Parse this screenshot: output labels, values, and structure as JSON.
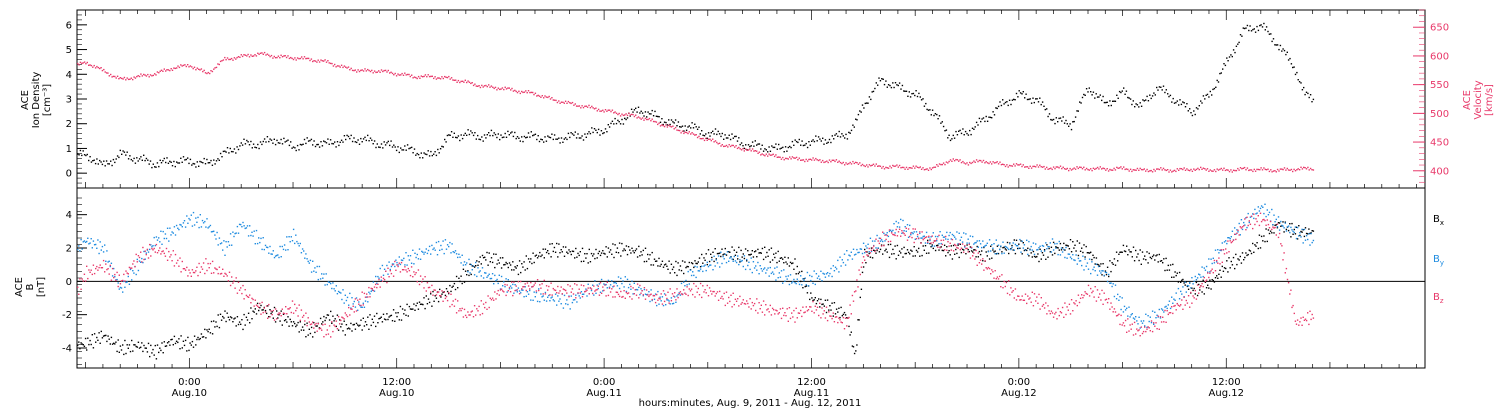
{
  "colors": {
    "black": "#000000",
    "pink": "#e8396a",
    "blue": "#1f8ce0"
  },
  "footer": {
    "xlabel": "hours:minutes, Aug.  9, 2011 - Aug. 12, 2011"
  },
  "chart_data": [
    {
      "type": "scatter",
      "panel": "top",
      "left_axis": {
        "label_lines": [
          "ACE",
          "Ion Density",
          "[cm⁻³]"
        ],
        "ylim": [
          -0.6,
          6.6
        ],
        "ticks": [
          "0",
          "1",
          "2",
          "3",
          "4",
          "5",
          "6"
        ]
      },
      "right_axis": {
        "label_lines": [
          "ACE",
          "Velocity",
          "[km/s]"
        ],
        "ylim": [
          370,
          680
        ],
        "ticks": [
          "400",
          "450",
          "500",
          "550",
          "600",
          "650"
        ]
      },
      "xlim_hours": [
        -6.5,
        71.5
      ],
      "grid": false,
      "series": [
        {
          "color_key": "black",
          "axis": "left",
          "x": [
            -6.5,
            -5.5,
            -5,
            -4,
            -3,
            -2,
            -1,
            0,
            1,
            2,
            3,
            4,
            5,
            6,
            7,
            8,
            9,
            10,
            11,
            12,
            13,
            14,
            15,
            16,
            17,
            18,
            19,
            20,
            21,
            22,
            23,
            24,
            25,
            26,
            27,
            28,
            29,
            30,
            31,
            32,
            33,
            34,
            35,
            36,
            37,
            38,
            38.5,
            39,
            40,
            41,
            42,
            43,
            44,
            45,
            46,
            47,
            48,
            49,
            50,
            51,
            52,
            53,
            54,
            55,
            56,
            57,
            58,
            59,
            60,
            61,
            62,
            63,
            64,
            64.5,
            65
          ],
          "y": [
            0.8,
            0.6,
            0.3,
            0.8,
            0.6,
            0.4,
            0.5,
            0.5,
            0.4,
            0.8,
            1.2,
            1.2,
            1.4,
            1.1,
            1.3,
            1.2,
            1.4,
            1.4,
            1.2,
            1.1,
            0.9,
            0.7,
            1.5,
            1.6,
            1.5,
            1.6,
            1.5,
            1.5,
            1.4,
            1.5,
            1.6,
            1.8,
            2.2,
            2.6,
            2.3,
            2.0,
            1.9,
            1.6,
            1.6,
            1.2,
            1.1,
            1.0,
            1.2,
            1.3,
            1.4,
            1.6,
            2.0,
            2.8,
            3.8,
            3.5,
            3.2,
            2.5,
            1.5,
            1.7,
            2.2,
            2.8,
            3.2,
            3.0,
            2.2,
            2.0,
            3.5,
            2.8,
            3.3,
            2.7,
            3.5,
            3.0,
            2.5,
            3.2,
            4.5,
            5.8,
            6.0,
            5.2,
            4.2,
            3.2,
            3.0
          ]
        },
        {
          "color_key": "pink",
          "axis": "right",
          "x": [
            -6.5,
            -6,
            -5,
            -4,
            -3,
            -2,
            -1,
            0,
            1,
            2,
            3,
            4,
            5,
            6,
            7,
            8,
            9,
            10,
            11,
            12,
            13,
            14,
            15,
            16,
            17,
            18,
            19,
            20,
            21,
            22,
            23,
            24,
            25,
            26,
            27,
            28,
            29,
            30,
            31,
            32,
            33,
            34,
            35,
            36,
            37,
            38,
            39,
            40,
            41,
            42,
            43,
            44,
            45,
            46,
            47,
            48,
            49,
            50,
            51,
            52,
            53,
            54,
            55,
            56,
            57,
            58,
            59,
            60,
            61,
            62,
            63,
            64,
            65
          ],
          "y": [
            585,
            590,
            575,
            560,
            565,
            570,
            580,
            585,
            570,
            595,
            600,
            605,
            600,
            598,
            595,
            590,
            580,
            575,
            575,
            570,
            565,
            565,
            562,
            555,
            548,
            545,
            540,
            535,
            525,
            518,
            512,
            506,
            500,
            495,
            485,
            475,
            465,
            455,
            445,
            440,
            432,
            425,
            422,
            420,
            418,
            415,
            412,
            408,
            408,
            406,
            405,
            420,
            415,
            418,
            412,
            410,
            408,
            406,
            405,
            405,
            404,
            405,
            402,
            403,
            402,
            404,
            403,
            402,
            404,
            403,
            402,
            404,
            405
          ]
        }
      ]
    },
    {
      "type": "scatter",
      "panel": "bottom",
      "left_axis": {
        "label_lines": [
          "ACE",
          "B",
          "[nT]"
        ],
        "ylim": [
          -5.2,
          5.6
        ],
        "ticks": [
          "-4",
          "-2",
          "0",
          "2",
          "4"
        ]
      },
      "xlim_hours": [
        -6.5,
        71.5
      ],
      "zero_line": 0,
      "grid": false,
      "legend": {
        "placement": "right",
        "entries": [
          {
            "text": "B",
            "sub": "x",
            "color_key": "black"
          },
          {
            "text": "B",
            "sub": "y",
            "color_key": "blue"
          },
          {
            "text": "B",
            "sub": "z",
            "color_key": "pink"
          }
        ]
      },
      "series": [
        {
          "color_key": "black",
          "x": [
            -6.5,
            -6,
            -5,
            -4,
            -3,
            -2,
            -1,
            0,
            1,
            2,
            3,
            4,
            5,
            6,
            7,
            8,
            9,
            10,
            11,
            12,
            13,
            14,
            15,
            16,
            17,
            18,
            19,
            20,
            21,
            22,
            23,
            24,
            25,
            26,
            27,
            28,
            29,
            30,
            31,
            32,
            33,
            34,
            35,
            36,
            37,
            38,
            38.5,
            39,
            40,
            41,
            42,
            43,
            44,
            45,
            46,
            47,
            48,
            49,
            50,
            51,
            52,
            53,
            54,
            55,
            56,
            57,
            58,
            59,
            60,
            61,
            62,
            63,
            64,
            65
          ],
          "y": [
            -3.8,
            -3.7,
            -3.2,
            -4.0,
            -3.8,
            -4.2,
            -3.5,
            -3.8,
            -3.0,
            -2.0,
            -2.5,
            -1.5,
            -2.0,
            -2.5,
            -3.0,
            -2.0,
            -2.8,
            -2.5,
            -2.2,
            -2.0,
            -1.5,
            -1.0,
            -0.5,
            0.5,
            1.5,
            1.2,
            0.8,
            1.5,
            2.0,
            1.8,
            1.5,
            1.8,
            2.0,
            1.8,
            1.2,
            0.8,
            1.0,
            1.5,
            1.8,
            1.6,
            1.8,
            1.5,
            1.0,
            -1.0,
            -1.5,
            -2.0,
            -4.5,
            1.5,
            2.0,
            1.8,
            1.8,
            2.2,
            1.8,
            2.0,
            1.6,
            2.0,
            2.2,
            1.5,
            2.0,
            2.2,
            1.8,
            0.5,
            2.0,
            1.5,
            1.5,
            0.5,
            -0.5,
            -0.2,
            1.0,
            1.5,
            2.5,
            3.5,
            3.0,
            3.0
          ]
        },
        {
          "color_key": "blue",
          "x": [
            -6.5,
            -6,
            -5,
            -4,
            -3,
            -2,
            -1,
            0,
            1,
            2,
            3,
            4,
            5,
            6,
            7,
            8,
            9,
            10,
            11,
            12,
            13,
            14,
            15,
            16,
            17,
            18,
            19,
            20,
            21,
            22,
            23,
            24,
            25,
            26,
            27,
            28,
            29,
            30,
            31,
            32,
            33,
            34,
            35,
            36,
            37,
            38,
            39,
            40,
            41,
            42,
            43,
            44,
            45,
            46,
            47,
            48,
            49,
            50,
            51,
            52,
            53,
            54,
            55,
            56,
            57,
            58,
            59,
            60,
            61,
            62,
            63,
            64,
            65
          ],
          "y": [
            2.0,
            2.5,
            2.0,
            -0.5,
            1.0,
            2.5,
            3.0,
            3.8,
            3.5,
            2.0,
            3.5,
            2.5,
            1.5,
            2.8,
            1.0,
            0.0,
            -1.0,
            -1.5,
            0.5,
            1.2,
            1.5,
            2.0,
            2.2,
            1.0,
            0.5,
            0.0,
            -0.5,
            -0.8,
            -1.0,
            -1.2,
            -0.5,
            -0.2,
            0.0,
            -0.5,
            -1.0,
            -1.2,
            0.5,
            1.0,
            1.5,
            1.2,
            0.8,
            0.5,
            0.0,
            0.2,
            0.5,
            1.5,
            2.0,
            2.5,
            3.5,
            2.8,
            2.5,
            2.8,
            2.5,
            2.2,
            2.0,
            2.2,
            2.0,
            2.2,
            1.5,
            1.0,
            0.5,
            -1.5,
            -2.5,
            -2.0,
            -1.0,
            0.0,
            1.0,
            2.5,
            3.5,
            4.5,
            3.5,
            3.0,
            2.5
          ]
        },
        {
          "color_key": "pink",
          "x": [
            -6.5,
            -6,
            -5,
            -4,
            -3,
            -2,
            -1,
            0,
            1,
            2,
            3,
            4,
            5,
            6,
            7,
            8,
            9,
            10,
            11,
            12,
            13,
            14,
            15,
            16,
            17,
            18,
            19,
            20,
            21,
            22,
            23,
            24,
            25,
            26,
            27,
            28,
            29,
            30,
            31,
            32,
            33,
            34,
            35,
            36,
            37,
            38,
            39,
            40,
            41,
            42,
            43,
            44,
            45,
            46,
            47,
            48,
            49,
            50,
            51,
            52,
            53,
            54,
            55,
            56,
            57,
            58,
            59,
            60,
            61,
            62,
            63,
            64,
            65
          ],
          "y": [
            -0.5,
            0.5,
            1.0,
            0.0,
            1.5,
            2.0,
            1.5,
            0.5,
            1.0,
            0.5,
            -0.5,
            -1.5,
            -2.0,
            -1.5,
            -2.5,
            -3.0,
            -2.0,
            -1.0,
            0.0,
            1.0,
            0.5,
            -0.5,
            -1.0,
            -2.0,
            -1.5,
            -0.5,
            -0.3,
            -0.2,
            -0.5,
            -0.5,
            -0.5,
            -0.4,
            -0.8,
            -0.5,
            -1.0,
            -0.8,
            -0.5,
            -0.5,
            -1.0,
            -1.2,
            -1.5,
            -1.8,
            -2.0,
            -1.5,
            -2.0,
            -2.5,
            1.5,
            2.5,
            3.0,
            2.8,
            2.5,
            2.2,
            2.0,
            1.0,
            0.0,
            -1.0,
            -1.0,
            -2.0,
            -1.5,
            -0.5,
            -1.0,
            -2.5,
            -3.0,
            -2.5,
            -1.5,
            -1.0,
            0.5,
            2.0,
            3.5,
            3.8,
            3.0,
            -2.5,
            -2.0
          ]
        }
      ]
    }
  ],
  "x_ticks": [
    {
      "hour": 0,
      "time": "0:00",
      "date": "Aug.10"
    },
    {
      "hour": 12,
      "time": "12:00",
      "date": "Aug.10"
    },
    {
      "hour": 24,
      "time": "0:00",
      "date": "Aug.11"
    },
    {
      "hour": 36,
      "time": "12:00",
      "date": "Aug.11"
    },
    {
      "hour": 48,
      "time": "0:00",
      "date": "Aug.12"
    },
    {
      "hour": 60,
      "time": "12:00",
      "date": "Aug.12"
    }
  ]
}
